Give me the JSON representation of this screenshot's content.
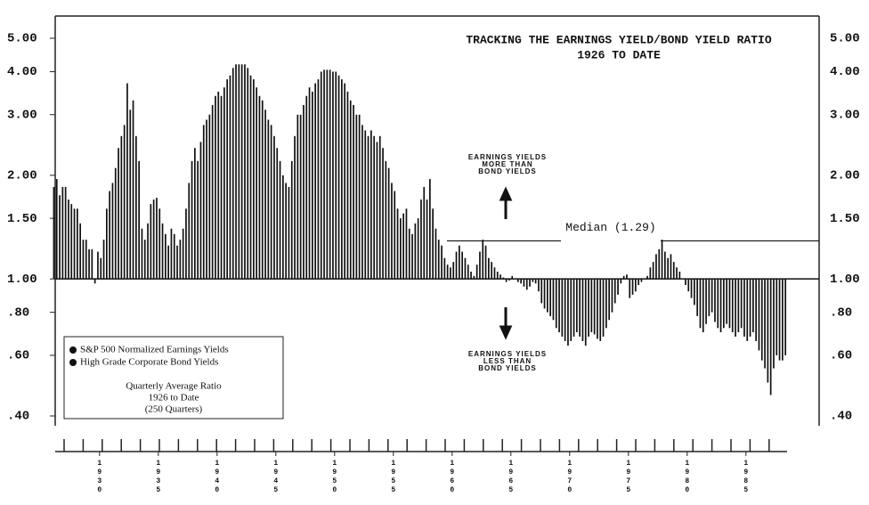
{
  "chart_data": {
    "type": "bar",
    "log_scale": true,
    "color": "#111111",
    "title": "TRACKING THE EARNINGS YIELD/BOND YIELD RATIO",
    "subtitle": "1926 TO DATE",
    "annotations": {
      "above": [
        "EARNINGS YIELDS",
        "MORE THAN",
        "BOND YIELDS"
      ],
      "below": [
        "EARNINGS YIELDS",
        "LESS THAN",
        "BOND YIELDS"
      ]
    },
    "median": 1.29,
    "median_label": "Median (1.29)",
    "legend": {
      "items": [
        "S&P 500 Normalized Earnings Yields",
        "High Grade Corporate Bond Yields"
      ],
      "note": [
        "Quarterly Average Ratio",
        "1926 to Date",
        "(250 Quarters)"
      ]
    },
    "ylim": [
      0.4,
      5
    ],
    "yticks": [
      {
        "value": 5,
        "label": "5.00"
      },
      {
        "value": 4,
        "label": "4.00"
      },
      {
        "value": 3,
        "label": "3.00"
      },
      {
        "value": 2,
        "label": "2.00"
      },
      {
        "value": 1.5,
        "label": "1.50"
      },
      {
        "value": 1,
        "label": "1.00"
      },
      {
        "value": 0.8,
        "label": ".80"
      },
      {
        "value": 0.6,
        "label": ".60"
      },
      {
        "value": 0.4,
        "label": ".40"
      }
    ],
    "xlim": [
      1926,
      1988.5
    ],
    "xticks": [
      1930,
      1935,
      1940,
      1945,
      1950,
      1955,
      1960,
      1965,
      1970,
      1975,
      1980,
      1985
    ],
    "x": [
      1926,
      1926.25,
      1926.5,
      1926.75,
      1927,
      1927.25,
      1927.5,
      1927.75,
      1928,
      1928.25,
      1928.5,
      1928.75,
      1929,
      1929.25,
      1929.5,
      1929.75,
      1930,
      1930.25,
      1930.5,
      1930.75,
      1931,
      1931.25,
      1931.5,
      1931.75,
      1932,
      1932.25,
      1932.5,
      1932.75,
      1933,
      1933.25,
      1933.5,
      1933.75,
      1934,
      1934.25,
      1934.5,
      1934.75,
      1935,
      1935.25,
      1935.5,
      1935.75,
      1936,
      1936.25,
      1936.5,
      1936.75,
      1937,
      1937.25,
      1937.5,
      1937.75,
      1938,
      1938.25,
      1938.5,
      1938.75,
      1939,
      1939.25,
      1939.5,
      1939.75,
      1940,
      1940.25,
      1940.5,
      1940.75,
      1941,
      1941.25,
      1941.5,
      1941.75,
      1942,
      1942.25,
      1942.5,
      1942.75,
      1943,
      1943.25,
      1943.5,
      1943.75,
      1944,
      1944.25,
      1944.5,
      1944.75,
      1945,
      1945.25,
      1945.5,
      1945.75,
      1946,
      1946.25,
      1946.5,
      1946.75,
      1947,
      1947.25,
      1947.5,
      1947.75,
      1948,
      1948.25,
      1948.5,
      1948.75,
      1949,
      1949.25,
      1949.5,
      1949.75,
      1950,
      1950.25,
      1950.5,
      1950.75,
      1951,
      1951.25,
      1951.5,
      1951.75,
      1952,
      1952.25,
      1952.5,
      1952.75,
      1953,
      1953.25,
      1953.5,
      1953.75,
      1954,
      1954.25,
      1954.5,
      1954.75,
      1955,
      1955.25,
      1955.5,
      1955.75,
      1956,
      1956.25,
      1956.5,
      1956.75,
      1957,
      1957.25,
      1957.5,
      1957.75,
      1958,
      1958.25,
      1958.5,
      1958.75,
      1959,
      1959.25,
      1959.5,
      1959.75,
      1960,
      1960.25,
      1960.5,
      1960.75,
      1961,
      1961.25,
      1961.5,
      1961.75,
      1962,
      1962.25,
      1962.5,
      1962.75,
      1963,
      1963.25,
      1963.5,
      1963.75,
      1964,
      1964.25,
      1964.5,
      1964.75,
      1965,
      1965.25,
      1965.5,
      1965.75,
      1966,
      1966.25,
      1966.5,
      1966.75,
      1967,
      1967.25,
      1967.5,
      1967.75,
      1968,
      1968.25,
      1968.5,
      1968.75,
      1969,
      1969.25,
      1969.5,
      1969.75,
      1970,
      1970.25,
      1970.5,
      1970.75,
      1971,
      1971.25,
      1971.5,
      1971.75,
      1972,
      1972.25,
      1972.5,
      1972.75,
      1973,
      1973.25,
      1973.5,
      1973.75,
      1974,
      1974.25,
      1974.5,
      1974.75,
      1975,
      1975.25,
      1975.5,
      1975.75,
      1976,
      1976.25,
      1976.5,
      1976.75,
      1977,
      1977.25,
      1977.5,
      1977.75,
      1978,
      1978.25,
      1978.5,
      1978.75,
      1979,
      1979.25,
      1979.5,
      1979.75,
      1980,
      1980.25,
      1980.5,
      1980.75,
      1981,
      1981.25,
      1981.5,
      1981.75,
      1982,
      1982.25,
      1982.5,
      1982.75,
      1983,
      1983.25,
      1983.5,
      1983.75,
      1984,
      1984.25,
      1984.5,
      1984.75,
      1985,
      1985.25,
      1985.5,
      1985.75,
      1986,
      1986.25,
      1986.5,
      1986.75,
      1987,
      1987.25,
      1987.5,
      1987.75,
      1988,
      1988.25
    ],
    "values": [
      1.85,
      1.95,
      1.75,
      1.85,
      1.85,
      1.7,
      1.65,
      1.6,
      1.6,
      1.45,
      1.3,
      1.3,
      1.22,
      1.22,
      0.97,
      1.2,
      1.15,
      1.3,
      1.6,
      1.8,
      1.9,
      2.1,
      2.4,
      2.6,
      2.8,
      3.7,
      3.1,
      3.3,
      2.6,
      2.2,
      1.4,
      1.3,
      1.45,
      1.65,
      1.7,
      1.72,
      1.6,
      1.45,
      1.35,
      1.25,
      1.4,
      1.35,
      1.25,
      1.3,
      1.4,
      1.6,
      1.9,
      2.2,
      2.4,
      2.2,
      2.5,
      2.8,
      2.9,
      3.0,
      3.2,
      3.4,
      3.5,
      3.4,
      3.6,
      3.8,
      3.9,
      4.1,
      4.2,
      4.2,
      4.2,
      4.2,
      4.1,
      3.9,
      3.8,
      3.6,
      3.4,
      3.3,
      3.1,
      2.9,
      2.8,
      2.6,
      2.4,
      2.2,
      2.0,
      1.9,
      1.85,
      2.2,
      2.6,
      3.0,
      3.0,
      3.2,
      3.4,
      3.6,
      3.5,
      3.7,
      3.8,
      4.0,
      4.05,
      4.05,
      4.05,
      4.0,
      4.0,
      3.9,
      3.8,
      3.7,
      3.5,
      3.3,
      3.2,
      3.0,
      3.0,
      2.8,
      2.7,
      2.6,
      2.7,
      2.6,
      2.5,
      2.6,
      2.4,
      2.2,
      2.1,
      1.9,
      1.8,
      1.6,
      1.5,
      1.55,
      1.6,
      1.4,
      1.35,
      1.45,
      1.5,
      1.7,
      1.85,
      1.7,
      1.95,
      1.6,
      1.4,
      1.3,
      1.25,
      1.15,
      1.1,
      1.08,
      1.12,
      1.2,
      1.25,
      1.2,
      1.15,
      1.1,
      1.05,
      1.02,
      1.1,
      1.2,
      1.3,
      1.25,
      1.15,
      1.12,
      1.08,
      1.05,
      1.03,
      1.01,
      0.98,
      0.99,
      1.02,
      1.0,
      0.98,
      0.97,
      0.95,
      0.93,
      0.95,
      0.98,
      0.97,
      0.92,
      0.85,
      0.82,
      0.8,
      0.78,
      0.76,
      0.72,
      0.7,
      0.68,
      0.66,
      0.64,
      0.66,
      0.68,
      0.7,
      0.68,
      0.66,
      0.64,
      0.68,
      0.7,
      0.69,
      0.67,
      0.66,
      0.68,
      0.72,
      0.76,
      0.8,
      0.85,
      0.9,
      0.97,
      1.02,
      1.03,
      0.88,
      0.9,
      0.92,
      0.96,
      0.98,
      1.0,
      1.02,
      1.08,
      1.12,
      1.18,
      1.22,
      1.3,
      1.2,
      1.15,
      1.18,
      1.12,
      1.08,
      1.05,
      1.0,
      0.96,
      0.92,
      0.88,
      0.84,
      0.78,
      0.72,
      0.7,
      0.74,
      0.78,
      0.8,
      0.75,
      0.72,
      0.7,
      0.72,
      0.74,
      0.72,
      0.7,
      0.68,
      0.7,
      0.72,
      0.68,
      0.66,
      0.68,
      0.7,
      0.66,
      0.62,
      0.58,
      0.55,
      0.5,
      0.46,
      0.55,
      0.6,
      0.58,
      0.58,
      0.6
    ]
  }
}
